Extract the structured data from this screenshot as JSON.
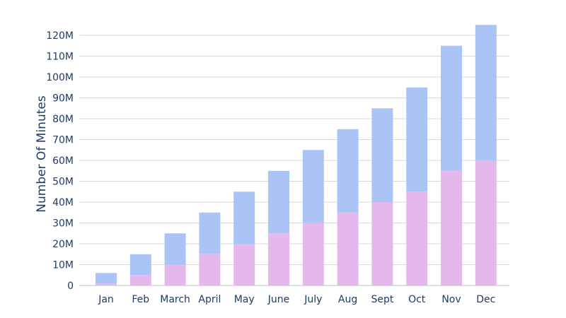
{
  "chart_data": {
    "type": "bar",
    "stacked": true,
    "title": "",
    "xlabel": "",
    "ylabel": "Number Of Minutes",
    "categories": [
      "Jan",
      "Feb",
      "March",
      "April",
      "May",
      "June",
      "July",
      "Aug",
      "Sept",
      "Oct",
      "Nov",
      "Dec"
    ],
    "series": [
      {
        "color": "#e4b8ec",
        "values": [
          1,
          5,
          10,
          15,
          20,
          25,
          30,
          35,
          40,
          45,
          55,
          60
        ]
      },
      {
        "color": "#abc4f6",
        "values": [
          5,
          10,
          15,
          20,
          25,
          30,
          35,
          40,
          45,
          50,
          60,
          65
        ]
      }
    ],
    "ylim": [
      0,
      120
    ],
    "yticks": [
      0,
      10,
      20,
      30,
      40,
      50,
      60,
      70,
      80,
      90,
      100,
      110,
      120
    ],
    "ytick_labels": [
      "0",
      "10M",
      "20M",
      "30M",
      "40M",
      "50M",
      "60M",
      "70M",
      "80M",
      "90M",
      "100M",
      "110M",
      "120M"
    ],
    "grid": true,
    "legend": "none"
  }
}
